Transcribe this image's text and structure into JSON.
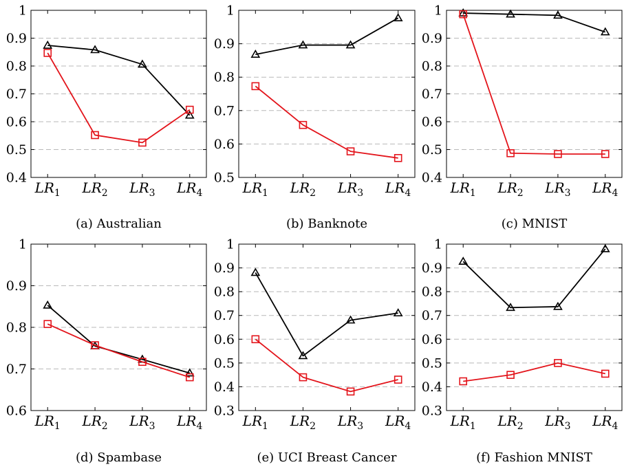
{
  "colors": {
    "series_a": "#000000",
    "series_b": "#e3141b"
  },
  "chart_data": [
    {
      "type": "line",
      "caption": "(a) Australian",
      "categories": [
        "LR1",
        "LR2",
        "LR3",
        "LR4"
      ],
      "ylim": [
        0.4,
        1.0
      ],
      "yticks": [
        "0.4",
        "0.5",
        "0.6",
        "0.7",
        "0.8",
        "0.9",
        "1"
      ],
      "grid": true,
      "series": [
        {
          "marker": "triangle",
          "values": [
            0.874,
            0.858,
            0.806,
            0.623
          ]
        },
        {
          "marker": "square",
          "values": [
            0.847,
            0.552,
            0.525,
            0.643
          ]
        }
      ]
    },
    {
      "type": "line",
      "caption": "(b) Banknote",
      "categories": [
        "LR1",
        "LR2",
        "LR3",
        "LR4"
      ],
      "ylim": [
        0.5,
        1.0
      ],
      "yticks": [
        "0.5",
        "0.6",
        "0.7",
        "0.8",
        "0.9",
        "1"
      ],
      "grid": true,
      "series": [
        {
          "marker": "triangle",
          "values": [
            0.868,
            0.896,
            0.896,
            0.977
          ]
        },
        {
          "marker": "square",
          "values": [
            0.773,
            0.657,
            0.578,
            0.558
          ]
        }
      ]
    },
    {
      "type": "line",
      "caption": "(c) MNIST",
      "categories": [
        "LR1",
        "LR2",
        "LR3",
        "LR4"
      ],
      "ylim": [
        0.4,
        1.0
      ],
      "yticks": [
        "0.4",
        "0.5",
        "0.6",
        "0.7",
        "0.8",
        "0.9",
        "1"
      ],
      "grid": true,
      "series": [
        {
          "marker": "triangle",
          "values": [
            0.99,
            0.986,
            0.982,
            0.922
          ]
        },
        {
          "marker": "square",
          "values": [
            0.986,
            0.487,
            0.484,
            0.484
          ]
        }
      ]
    },
    {
      "type": "line",
      "caption": "(d) Spambase",
      "categories": [
        "LR1",
        "LR2",
        "LR3",
        "LR4"
      ],
      "ylim": [
        0.6,
        1.0
      ],
      "yticks": [
        "0.6",
        "0.7",
        "0.8",
        "0.9",
        "1"
      ],
      "grid": true,
      "series": [
        {
          "marker": "triangle",
          "values": [
            0.853,
            0.755,
            0.723,
            0.69
          ]
        },
        {
          "marker": "square",
          "values": [
            0.808,
            0.757,
            0.717,
            0.68
          ]
        }
      ]
    },
    {
      "type": "line",
      "caption": "(e) UCI Breast Cancer",
      "categories": [
        "LR1",
        "LR2",
        "LR3",
        "LR4"
      ],
      "ylim": [
        0.3,
        1.0
      ],
      "yticks": [
        "0.3",
        "0.4",
        "0.5",
        "0.6",
        "0.7",
        "0.8",
        "0.9",
        "1"
      ],
      "grid": true,
      "series": [
        {
          "marker": "triangle",
          "values": [
            0.88,
            0.53,
            0.68,
            0.71
          ]
        },
        {
          "marker": "square",
          "values": [
            0.6,
            0.44,
            0.38,
            0.43
          ]
        }
      ]
    },
    {
      "type": "line",
      "caption": "(f) Fashion MNIST",
      "categories": [
        "LR1",
        "LR2",
        "LR3",
        "LR4"
      ],
      "ylim": [
        0.3,
        1.0
      ],
      "yticks": [
        "0.3",
        "0.4",
        "0.5",
        "0.6",
        "0.7",
        "0.8",
        "0.9",
        "1"
      ],
      "grid": true,
      "series": [
        {
          "marker": "triangle",
          "values": [
            0.927,
            0.733,
            0.737,
            0.98
          ]
        },
        {
          "marker": "square",
          "values": [
            0.423,
            0.45,
            0.5,
            0.455
          ]
        }
      ]
    }
  ]
}
